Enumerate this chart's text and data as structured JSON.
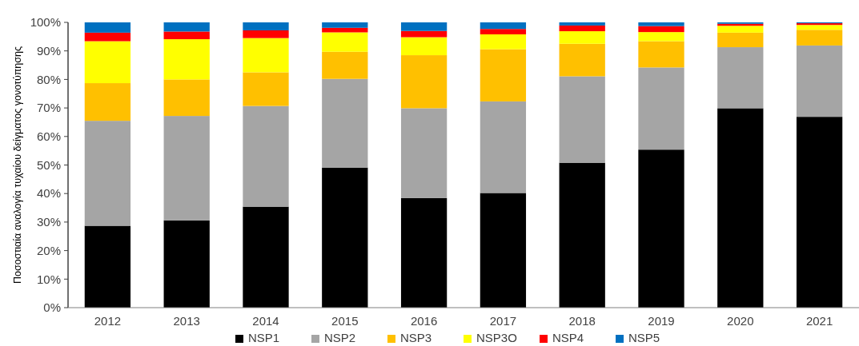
{
  "chart_data": {
    "type": "bar",
    "stacked": true,
    "ylabel": "Ποσοστιαία αναλογία τυχαίου δείγματος γονοτύπησης",
    "categories": [
      "2012",
      "2013",
      "2014",
      "2015",
      "2016",
      "2017",
      "2018",
      "2019",
      "2020",
      "2021"
    ],
    "series": [
      {
        "name": "NSP1",
        "color": "#000000",
        "values": [
          28.7,
          30.6,
          35.4,
          49.1,
          38.4,
          40.2,
          50.8,
          55.4,
          69.9,
          66.9
        ]
      },
      {
        "name": "NSP2",
        "color": "#a5a5a5",
        "values": [
          36.8,
          36.6,
          35.3,
          31.1,
          31.5,
          32.1,
          30.3,
          28.8,
          21.4,
          25.0
        ]
      },
      {
        "name": "NSP3",
        "color": "#ffc000",
        "values": [
          13.2,
          12.8,
          11.8,
          9.5,
          18.6,
          18.3,
          11.4,
          9.2,
          5.1,
          5.5
        ]
      },
      {
        "name": "NSP3O",
        "color": "#ffff00",
        "values": [
          14.7,
          14.1,
          12.0,
          6.8,
          6.3,
          5.2,
          4.4,
          3.2,
          2.4,
          1.7
        ]
      },
      {
        "name": "NSP4",
        "color": "#ff0000",
        "values": [
          3.0,
          2.7,
          2.7,
          1.6,
          2.2,
          1.9,
          2.0,
          2.1,
          0.7,
          0.6
        ]
      },
      {
        "name": "NSP5",
        "color": "#0070c0",
        "values": [
          3.6,
          3.2,
          2.8,
          1.9,
          3.0,
          2.3,
          1.1,
          1.3,
          0.5,
          0.3
        ]
      }
    ],
    "ylim": [
      0,
      100
    ],
    "yticks": [
      {
        "value": 0,
        "label": "0%"
      },
      {
        "value": 10,
        "label": "10%"
      },
      {
        "value": 20,
        "label": "20%"
      },
      {
        "value": 30,
        "label": "30%"
      },
      {
        "value": 40,
        "label": "40%"
      },
      {
        "value": 50,
        "label": "50%"
      },
      {
        "value": 60,
        "label": "60%"
      },
      {
        "value": 70,
        "label": "70%"
      },
      {
        "value": 80,
        "label": "80%"
      },
      {
        "value": 90,
        "label": "90%"
      },
      {
        "value": 100,
        "label": "100%"
      }
    ],
    "grid": false,
    "legend": "bottom"
  }
}
